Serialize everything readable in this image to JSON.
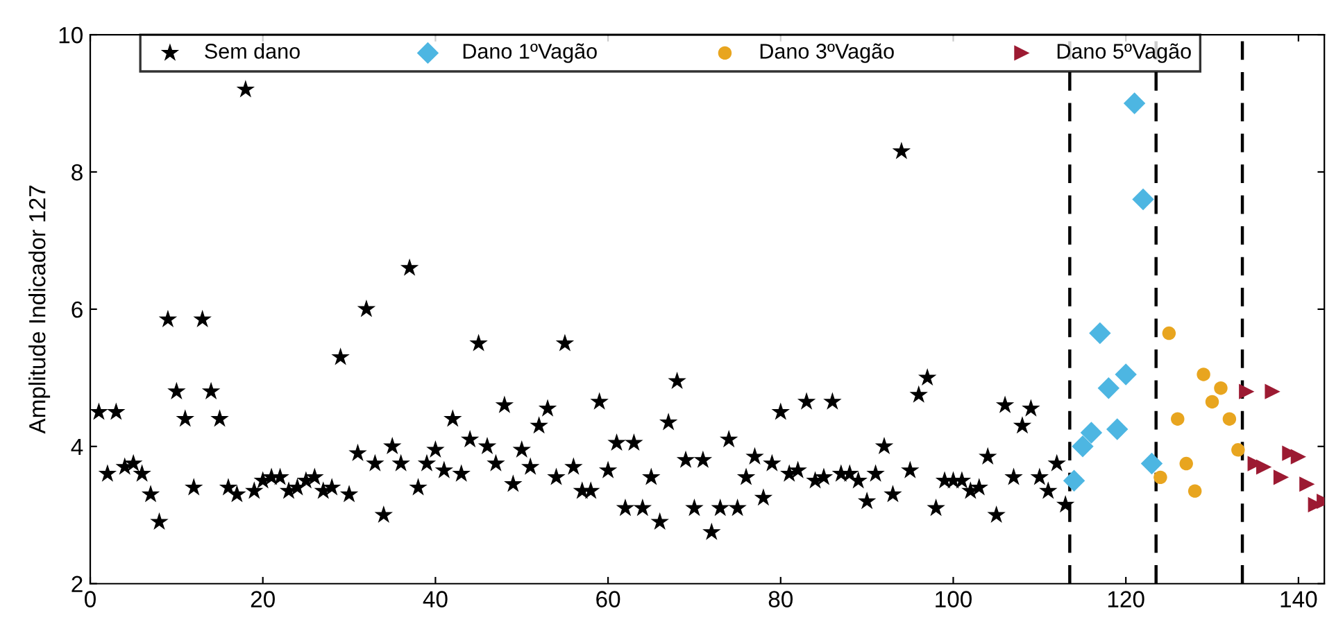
{
  "chart_data": {
    "type": "scatter",
    "ylabel": "Amplitude Indicador 127",
    "xlim": [
      0,
      143
    ],
    "xticks": [
      0,
      20,
      40,
      60,
      80,
      100,
      120,
      140
    ],
    "ylim": [
      2,
      10
    ],
    "yticks": [
      2,
      4,
      6,
      8,
      10
    ],
    "grid": false,
    "legend": "top",
    "tick_labels": "xy",
    "series": [
      {
        "name": "Sem dano",
        "color": "#000000",
        "marker": "star",
        "x": [
          1,
          2,
          3,
          4,
          5,
          6,
          7,
          8,
          9,
          10,
          11,
          12,
          13,
          14,
          15,
          16,
          17,
          18,
          19,
          20,
          21,
          22,
          23,
          24,
          25,
          26,
          27,
          28,
          29,
          30,
          31,
          32,
          33,
          34,
          35,
          36,
          37,
          38,
          39,
          40,
          41,
          42,
          43,
          44,
          45,
          46,
          47,
          48,
          49,
          50,
          51,
          52,
          53,
          54,
          55,
          56,
          57,
          58,
          59,
          60,
          61,
          62,
          63,
          64,
          65,
          66,
          67,
          68,
          69,
          70,
          71,
          72,
          73,
          74,
          75,
          76,
          77,
          78,
          79,
          80,
          81,
          82,
          83,
          84,
          85,
          86,
          87,
          88,
          89,
          90,
          91,
          92,
          93,
          94,
          95,
          96,
          97,
          98,
          99,
          100,
          101,
          102,
          103,
          104,
          105,
          106,
          107,
          108,
          109,
          110,
          111,
          112,
          113
        ],
        "values": [
          4.5,
          3.6,
          4.5,
          3.7,
          3.75,
          3.6,
          3.3,
          2.9,
          5.85,
          4.8,
          4.4,
          3.4,
          5.85,
          4.8,
          4.4,
          3.4,
          3.3,
          9.2,
          3.35,
          3.5,
          3.55,
          3.55,
          3.35,
          3.4,
          3.5,
          3.55,
          3.35,
          3.4,
          5.3,
          3.3,
          3.9,
          6.0,
          3.75,
          3.0,
          4.0,
          3.75,
          6.6,
          3.4,
          3.75,
          3.95,
          3.65,
          4.4,
          3.6,
          4.1,
          5.5,
          4.0,
          3.75,
          4.6,
          3.45,
          3.95,
          3.7,
          4.3,
          4.55,
          3.55,
          5.5,
          3.7,
          3.35,
          3.35,
          4.65,
          3.65,
          4.05,
          3.1,
          4.05,
          3.1,
          3.55,
          2.9,
          4.35,
          4.95,
          3.8,
          3.1,
          3.8,
          2.75,
          3.1,
          4.1,
          3.1,
          3.55,
          3.85,
          3.25,
          3.75,
          4.5,
          3.6,
          3.65,
          4.65,
          3.5,
          3.55,
          4.65,
          3.6,
          3.6,
          3.5,
          3.2,
          3.6,
          4.0,
          3.3,
          8.3,
          3.65,
          4.75,
          5.0,
          3.1,
          3.5,
          3.5,
          3.5,
          3.35,
          3.4,
          3.85,
          3.0,
          4.6,
          3.55,
          4.3,
          4.55,
          3.55,
          3.35,
          3.75,
          3.15
        ]
      },
      {
        "name": "Dano 1ºVagão",
        "color": "#4db6e2",
        "marker": "diamond",
        "x": [
          114,
          115,
          116,
          117,
          118,
          119,
          120,
          121,
          122,
          123
        ],
        "values": [
          3.5,
          4.0,
          4.2,
          5.65,
          4.85,
          4.25,
          5.05,
          9.0,
          7.6,
          3.75
        ]
      },
      {
        "name": "Dano 3ºVagão",
        "color": "#e8a51f",
        "marker": "circle",
        "x": [
          124,
          125,
          126,
          127,
          128,
          129,
          130,
          131,
          132,
          133
        ],
        "values": [
          3.55,
          5.65,
          4.4,
          3.75,
          3.35,
          5.05,
          4.65,
          4.85,
          4.4,
          3.95
        ]
      },
      {
        "name": "Dano 5ºVagão",
        "color": "#9c1a32",
        "marker": "triangle",
        "x": [
          134,
          135,
          136,
          137,
          138,
          139,
          140,
          141,
          142,
          143
        ],
        "values": [
          4.8,
          3.75,
          3.7,
          4.8,
          3.55,
          3.9,
          3.85,
          3.45,
          3.15,
          3.2
        ]
      }
    ],
    "ref_lines": [
      {
        "axis": "x",
        "value": 113.5,
        "color": "#000000",
        "line_style": "dashed"
      },
      {
        "axis": "x",
        "value": 123.5,
        "color": "#000000",
        "line_style": "dashed"
      },
      {
        "axis": "x",
        "value": 133.5,
        "color": "#000000",
        "line_style": "dashed"
      }
    ]
  }
}
